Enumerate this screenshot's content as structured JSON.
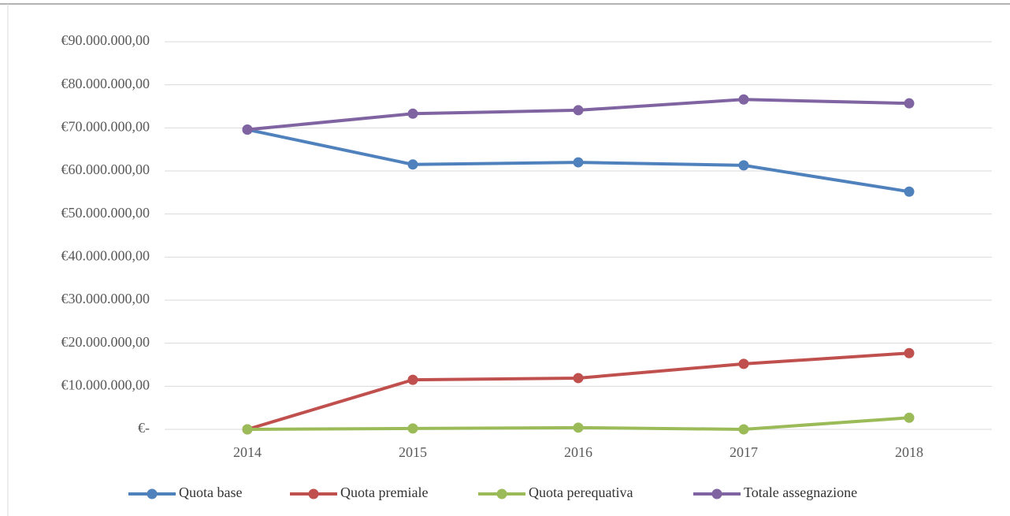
{
  "chart_data": {
    "type": "line",
    "categories": [
      "2014",
      "2015",
      "2016",
      "2017",
      "2018"
    ],
    "series": [
      {
        "name": "Quota base",
        "color": "#4f81bd",
        "values": [
          69600000,
          61500000,
          62000000,
          61300000,
          55200000
        ]
      },
      {
        "name": "Quota premiale",
        "color": "#c0504d",
        "values": [
          0,
          11500000,
          11900000,
          15200000,
          17700000
        ]
      },
      {
        "name": "Quota perequativa",
        "color": "#9bbb59",
        "values": [
          0,
          200000,
          400000,
          0,
          2700000
        ]
      },
      {
        "name": "Totale assegnazione",
        "color": "#8064a2",
        "values": [
          69600000,
          73300000,
          74100000,
          76600000,
          75700000
        ]
      }
    ],
    "ylim": [
      0,
      90000000
    ],
    "yticks": [
      {
        "value": 0,
        "label": "€-"
      },
      {
        "value": 10000000,
        "label": "€10.000.000,00"
      },
      {
        "value": 20000000,
        "label": "€20.000.000,00"
      },
      {
        "value": 30000000,
        "label": "€30.000.000,00"
      },
      {
        "value": 40000000,
        "label": "€40.000.000,00"
      },
      {
        "value": 50000000,
        "label": "€50.000.000,00"
      },
      {
        "value": 60000000,
        "label": "€60.000.000,00"
      },
      {
        "value": 70000000,
        "label": "€70.000.000,00"
      },
      {
        "value": 80000000,
        "label": "€80.000.000,00"
      },
      {
        "value": 90000000,
        "label": "€90.000.000,00"
      }
    ],
    "grid": true,
    "legend": "bottom"
  }
}
